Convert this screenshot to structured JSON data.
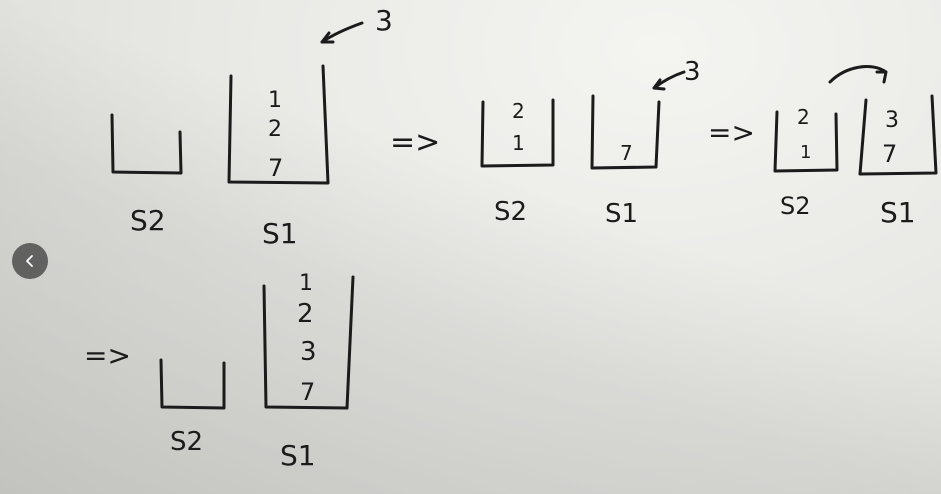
{
  "diagram": {
    "ink_color": "#1b1b1b",
    "arrow": "=>",
    "incoming_value": "3",
    "stages": [
      {
        "stacks": [
          {
            "name": "S2",
            "items": []
          },
          {
            "name": "S1",
            "items": [
              "1",
              "2",
              "7"
            ]
          }
        ]
      },
      {
        "stacks": [
          {
            "name": "S2",
            "items": [
              "2",
              "1"
            ]
          },
          {
            "name": "S1",
            "items": [
              "7"
            ]
          }
        ]
      },
      {
        "stacks": [
          {
            "name": "S2",
            "items": [
              "2",
              "1"
            ]
          },
          {
            "name": "S1",
            "items": [
              "3",
              "7"
            ]
          }
        ]
      },
      {
        "stacks": [
          {
            "name": "S2",
            "items": []
          },
          {
            "name": "S1",
            "items": [
              "1",
              "2",
              "3",
              "7"
            ]
          }
        ]
      }
    ]
  },
  "viewer": {
    "back_icon": "chevron-left-icon"
  }
}
